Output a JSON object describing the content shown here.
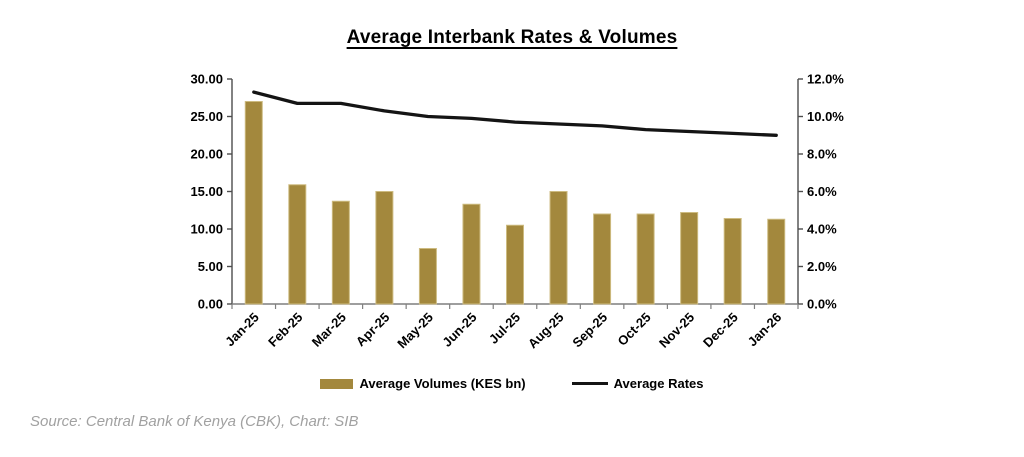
{
  "chart_data": {
    "type": "combo",
    "title": "Average Interbank Rates & Volumes",
    "categories": [
      "Jan-25",
      "Feb-25",
      "Mar-25",
      "Apr-25",
      "May-25",
      "Jun-25",
      "Jul-25",
      "Aug-25",
      "Sep-25",
      "Oct-25",
      "Nov-25",
      "Dec-25",
      "Jan-26"
    ],
    "series": [
      {
        "name": "Average Volumes (KES bn)",
        "type": "bar",
        "axis": "left",
        "values": [
          27.0,
          15.9,
          13.7,
          15.0,
          7.4,
          13.3,
          10.5,
          15.0,
          12.0,
          12.0,
          12.2,
          11.4,
          11.3
        ]
      },
      {
        "name": "Average Rates",
        "type": "line",
        "axis": "right",
        "values": [
          11.3,
          10.7,
          10.7,
          10.3,
          10.0,
          9.9,
          9.7,
          9.6,
          9.5,
          9.3,
          9.2,
          9.1,
          9.0
        ]
      }
    ],
    "left_axis": {
      "min": 0,
      "max": 30,
      "step": 5,
      "tick_labels": [
        "0.00",
        "5.00",
        "10.00",
        "15.00",
        "20.00",
        "25.00",
        "30.00"
      ]
    },
    "right_axis": {
      "min": 0,
      "max": 12,
      "step": 2,
      "tick_labels": [
        "0.0%",
        "2.0%",
        "4.0%",
        "6.0%",
        "8.0%",
        "10.0%",
        "12.0%"
      ]
    },
    "x_label_rotation": -45,
    "legend_position": "bottom",
    "grid": false
  },
  "legend": {
    "volumes_label": "Average Volumes (KES bn)",
    "rates_label": "Average Rates"
  },
  "source_note": "Source: Central Bank of Kenya (CBK), Chart: SIB",
  "colors": {
    "bar_fill": "#a3883d",
    "bar_edge": "#cdbb80",
    "line": "#141414",
    "axis": "#4d4d4d",
    "tick": "#7f7f7f",
    "text": "#000000",
    "source_text": "#a1a1a1"
  }
}
